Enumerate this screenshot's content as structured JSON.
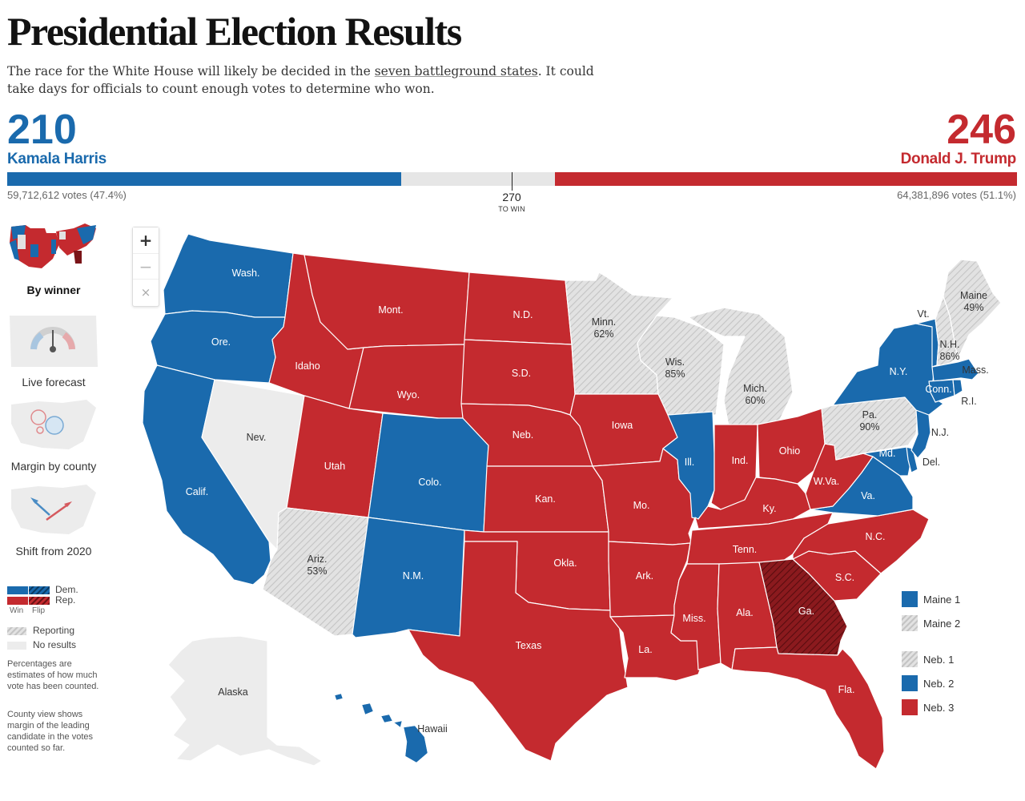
{
  "header": {
    "title": "Presidential Election Results",
    "intro_before": "The race for the White House will likely be decided in the ",
    "intro_link": "seven battleground states",
    "intro_after": ". It could take days for officials to count enough votes to determine who won."
  },
  "scoreboard": {
    "dem": {
      "electoral_votes": "210",
      "name": "Kamala Harris",
      "votes_text": "59,712,612 votes (47.4%)",
      "electoral_count": 210
    },
    "rep": {
      "electoral_votes": "246",
      "name": "Donald J. Trump",
      "votes_text": "64,381,896 votes (51.1%)",
      "electoral_count": 246
    },
    "total_electoral": 538,
    "threshold_value": "270",
    "threshold_label": "TO WIN"
  },
  "views": [
    {
      "label": "By winner",
      "active": true
    },
    {
      "label": "Live forecast",
      "active": false
    },
    {
      "label": "Margin by county",
      "active": false
    },
    {
      "label": "Shift from 2020",
      "active": false
    }
  ],
  "zoom": {
    "in": "+",
    "out": "−",
    "reset": "×"
  },
  "legend": {
    "dem": "Dem.",
    "rep": "Rep.",
    "win": "Win",
    "flip": "Flip",
    "reporting": "Reporting",
    "no_results": "No results",
    "note1": "Percentages are estimates of how much vote has been counted.",
    "note2": "County view shows margin of the leading candidate in the votes counted so far."
  },
  "split_districts": [
    {
      "label": "Maine 1",
      "status": "dem"
    },
    {
      "label": "Maine 2",
      "status": "reporting"
    },
    {
      "label": "Neb. 1",
      "status": "reporting"
    },
    {
      "label": "Neb. 2",
      "status": "dem"
    },
    {
      "label": "Neb. 3",
      "status": "rep"
    }
  ],
  "colors": {
    "dem": "#1a6aad",
    "rep": "#c42a2f",
    "rep_flip": "#8b1a1e",
    "reporting": "#e2e2e2",
    "reporting_hatch": "#c4c4c4",
    "no_results": "#ececec",
    "bar_gray": "#e6e6e6"
  },
  "states": [
    {
      "id": "wa",
      "label": "Wash.",
      "status": "dem"
    },
    {
      "id": "or",
      "label": "Ore.",
      "status": "dem"
    },
    {
      "id": "ca",
      "label": "Calif.",
      "status": "dem"
    },
    {
      "id": "id",
      "label": "Idaho",
      "status": "rep"
    },
    {
      "id": "nv",
      "label": "Nev.",
      "status": "none"
    },
    {
      "id": "mt",
      "label": "Mont.",
      "status": "rep"
    },
    {
      "id": "wy",
      "label": "Wyo.",
      "status": "rep"
    },
    {
      "id": "ut",
      "label": "Utah",
      "status": "rep"
    },
    {
      "id": "az",
      "label": "Ariz.",
      "pct": "53%",
      "status": "reporting"
    },
    {
      "id": "co",
      "label": "Colo.",
      "status": "dem"
    },
    {
      "id": "nm",
      "label": "N.M.",
      "status": "dem"
    },
    {
      "id": "nd",
      "label": "N.D.",
      "status": "rep"
    },
    {
      "id": "sd",
      "label": "S.D.",
      "status": "rep"
    },
    {
      "id": "ne",
      "label": "Neb.",
      "status": "rep"
    },
    {
      "id": "ks",
      "label": "Kan.",
      "status": "rep"
    },
    {
      "id": "ok",
      "label": "Okla.",
      "status": "rep"
    },
    {
      "id": "tx",
      "label": "Texas",
      "status": "rep"
    },
    {
      "id": "mn",
      "label": "Minn.",
      "pct": "62%",
      "status": "reporting"
    },
    {
      "id": "ia",
      "label": "Iowa",
      "status": "rep"
    },
    {
      "id": "mo",
      "label": "Mo.",
      "status": "rep"
    },
    {
      "id": "ar",
      "label": "Ark.",
      "status": "rep"
    },
    {
      "id": "la",
      "label": "La.",
      "status": "rep"
    },
    {
      "id": "wi",
      "label": "Wis.",
      "pct": "85%",
      "status": "reporting"
    },
    {
      "id": "il",
      "label": "Ill.",
      "status": "dem"
    },
    {
      "id": "mi",
      "label": "Mich.",
      "pct": "60%",
      "status": "reporting"
    },
    {
      "id": "in",
      "label": "Ind.",
      "status": "rep"
    },
    {
      "id": "oh",
      "label": "Ohio",
      "status": "rep"
    },
    {
      "id": "ky",
      "label": "Ky.",
      "status": "rep"
    },
    {
      "id": "tn",
      "label": "Tenn.",
      "status": "rep"
    },
    {
      "id": "ms",
      "label": "Miss.",
      "status": "rep"
    },
    {
      "id": "al",
      "label": "Ala.",
      "status": "rep"
    },
    {
      "id": "ga",
      "label": "Ga.",
      "status": "rep_flip"
    },
    {
      "id": "fl",
      "label": "Fla.",
      "status": "rep"
    },
    {
      "id": "sc",
      "label": "S.C.",
      "status": "rep"
    },
    {
      "id": "nc",
      "label": "N.C.",
      "status": "rep"
    },
    {
      "id": "va",
      "label": "Va.",
      "status": "dem"
    },
    {
      "id": "wv",
      "label": "W.Va.",
      "status": "rep"
    },
    {
      "id": "pa",
      "label": "Pa.",
      "pct": "90%",
      "status": "reporting"
    },
    {
      "id": "ny",
      "label": "N.Y.",
      "status": "dem"
    },
    {
      "id": "vt",
      "label": "Vt.",
      "status": "dem"
    },
    {
      "id": "nh",
      "label": "N.H.",
      "pct": "86%",
      "status": "reporting"
    },
    {
      "id": "me",
      "label": "Maine",
      "pct": "49%",
      "status": "reporting"
    },
    {
      "id": "ma",
      "label": "Mass.",
      "status": "dem"
    },
    {
      "id": "ct",
      "label": "Conn.",
      "status": "dem"
    },
    {
      "id": "ri",
      "label": "R.I.",
      "status": "dem"
    },
    {
      "id": "nj",
      "label": "N.J.",
      "status": "dem"
    },
    {
      "id": "de",
      "label": "Del.",
      "status": "dem"
    },
    {
      "id": "md",
      "label": "Md.",
      "status": "dem"
    },
    {
      "id": "ak",
      "label": "Alaska",
      "status": "none"
    },
    {
      "id": "hi",
      "label": "Hawaii",
      "status": "dem"
    }
  ]
}
